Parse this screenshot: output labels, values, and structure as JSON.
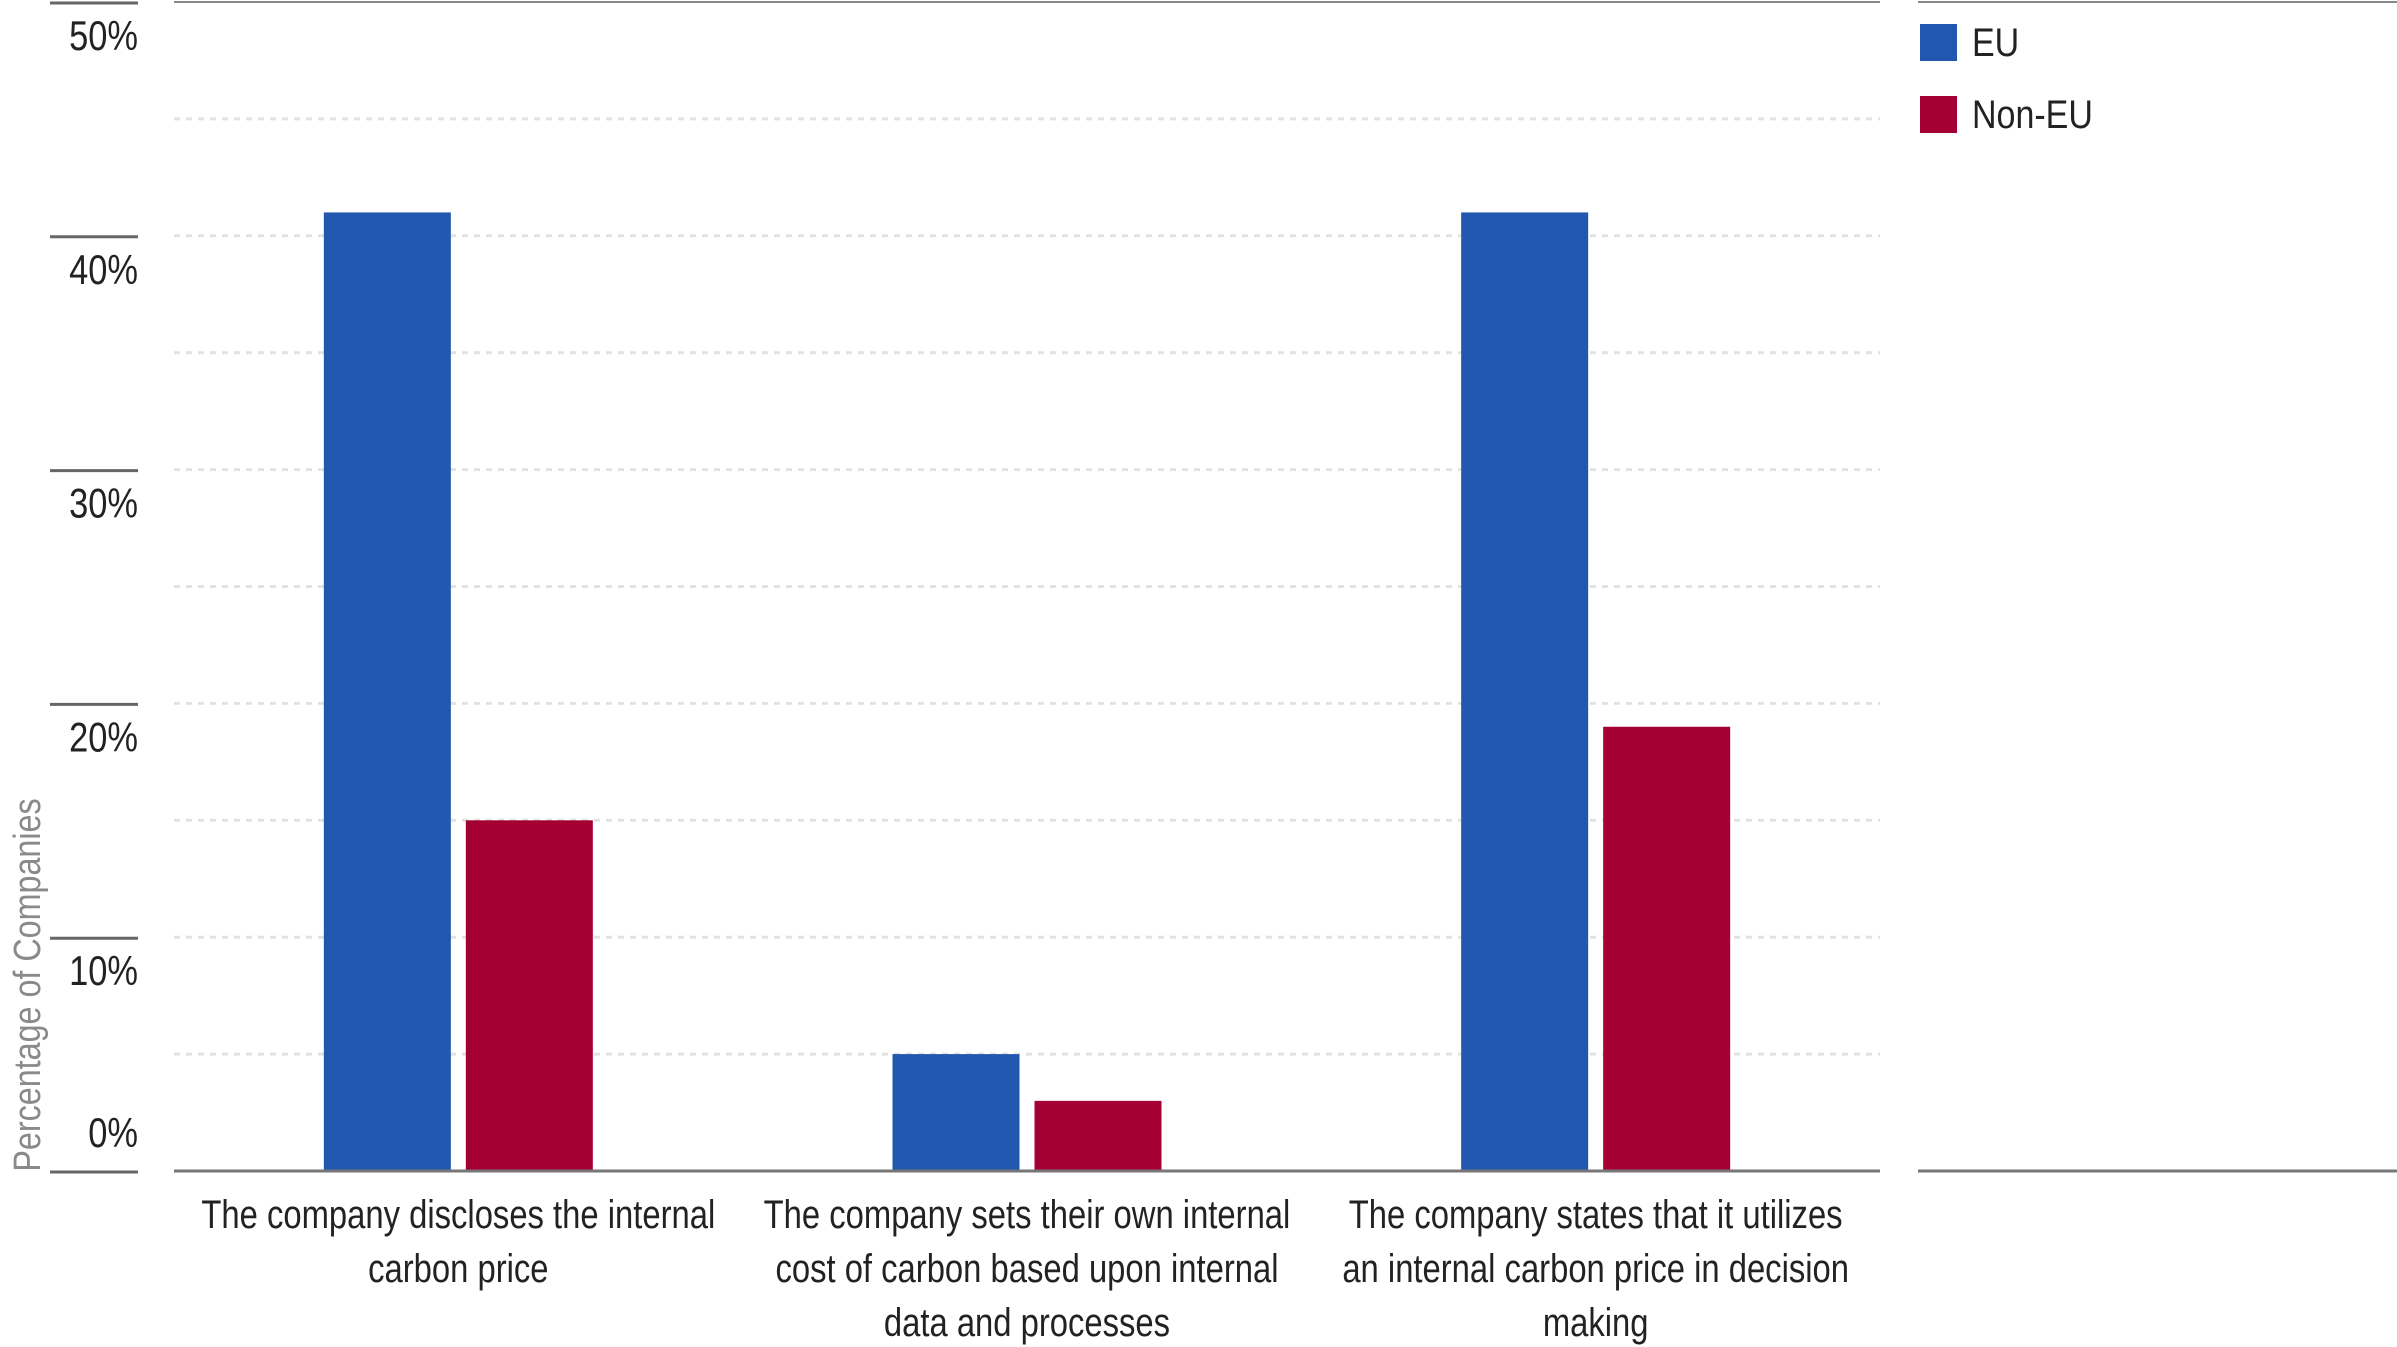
{
  "chart_data": {
    "type": "bar",
    "title": "",
    "xlabel": "",
    "ylabel": "Percentage of Companies",
    "ylim": [
      0,
      50
    ],
    "yticks": [
      0,
      10,
      20,
      30,
      40,
      50
    ],
    "ytick_labels": [
      "0%",
      "10%",
      "20%",
      "30%",
      "40%",
      "50%"
    ],
    "grid": "horizontal dotted every 5%",
    "legend_position": "top-right",
    "categories": [
      [
        "The company discloses the internal",
        "carbon price"
      ],
      [
        "The company sets their own internal",
        "cost of carbon based upon internal",
        "data and processes"
      ],
      [
        "The company states that it utilizes",
        "an internal carbon price in decision",
        "making"
      ]
    ],
    "series": [
      {
        "name": "EU",
        "color": "#2157ae",
        "values": [
          41,
          5,
          41
        ]
      },
      {
        "name": "Non-EU",
        "color": "#a50034",
        "values": [
          15,
          3,
          19
        ]
      }
    ]
  }
}
